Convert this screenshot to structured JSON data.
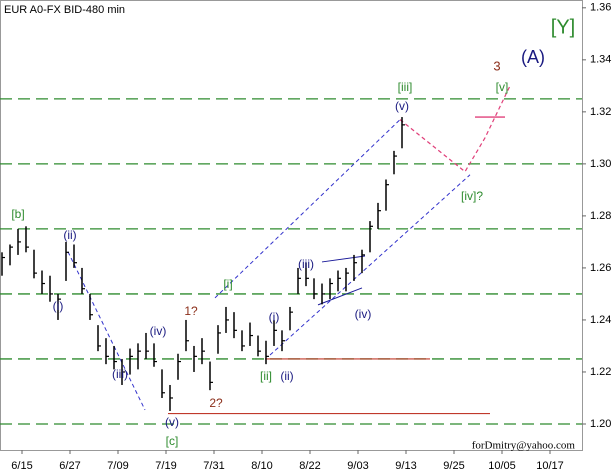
{
  "chart_data": {
    "type": "ohlc",
    "title": "EUR A0-FX BID-480 min",
    "footer": "forDmitry@yahoo.com",
    "color": "#000000",
    "x": [
      1,
      3,
      5,
      7,
      9,
      11,
      13,
      15,
      17,
      19,
      21,
      23,
      25,
      27,
      29,
      31,
      33,
      35,
      37,
      39,
      41,
      43,
      45,
      47,
      49,
      51,
      53,
      55,
      57,
      59,
      61,
      63,
      65,
      67,
      69,
      71,
      73,
      75,
      77,
      79,
      81,
      83,
      85,
      87,
      89,
      91,
      93,
      95,
      97,
      99,
      101
    ],
    "high": [
      1.266,
      1.269,
      1.275,
      1.276,
      1.267,
      1.259,
      1.257,
      1.25,
      1.27,
      1.269,
      1.26,
      1.25,
      1.238,
      1.233,
      1.23,
      1.225,
      1.229,
      1.231,
      1.235,
      1.231,
      1.221,
      1.215,
      1.227,
      1.24,
      1.23,
      1.233,
      1.224,
      1.238,
      1.245,
      1.243,
      1.236,
      1.239,
      1.234,
      1.232,
      1.24,
      1.236,
      1.245,
      1.26,
      1.262,
      1.256,
      1.254,
      1.256,
      1.259,
      1.26,
      1.265,
      1.267,
      1.278,
      1.285,
      1.294,
      1.305,
      1.318
    ],
    "low": [
      1.257,
      1.261,
      1.265,
      1.266,
      1.256,
      1.25,
      1.247,
      1.24,
      1.255,
      1.26,
      1.25,
      1.24,
      1.228,
      1.223,
      1.221,
      1.215,
      1.219,
      1.221,
      1.225,
      1.222,
      1.21,
      1.205,
      1.217,
      1.228,
      1.22,
      1.223,
      1.213,
      1.227,
      1.235,
      1.233,
      1.228,
      1.23,
      1.226,
      1.223,
      1.23,
      1.228,
      1.236,
      1.25,
      1.253,
      1.248,
      1.246,
      1.248,
      1.251,
      1.251,
      1.255,
      1.258,
      1.266,
      1.275,
      1.282,
      1.296,
      1.306
    ],
    "close": [
      1.264,
      1.268,
      1.27,
      1.268,
      1.258,
      1.254,
      1.25,
      1.248,
      1.266,
      1.262,
      1.252,
      1.242,
      1.23,
      1.226,
      1.224,
      1.22,
      1.226,
      1.228,
      1.228,
      1.224,
      1.212,
      1.21,
      1.224,
      1.232,
      1.226,
      1.228,
      1.216,
      1.235,
      1.24,
      1.236,
      1.23,
      1.234,
      1.228,
      1.226,
      1.236,
      1.232,
      1.243,
      1.256,
      1.256,
      1.25,
      1.25,
      1.254,
      1.256,
      1.258,
      1.262,
      1.265,
      1.276,
      1.282,
      1.292,
      1.303,
      1.315
    ],
    "xlim": [
      0.5,
      146
    ],
    "xticks": [
      {
        "value": 6,
        "label": "6/15"
      },
      {
        "value": 18,
        "label": "6/27"
      },
      {
        "value": 30,
        "label": "7/09"
      },
      {
        "value": 42,
        "label": "7/19"
      },
      {
        "value": 54,
        "label": "7/31"
      },
      {
        "value": 66,
        "label": "8/10"
      },
      {
        "value": 78,
        "label": "8/22"
      },
      {
        "value": 90,
        "label": "9/03"
      },
      {
        "value": 102,
        "label": "9/13"
      },
      {
        "value": 114,
        "label": "9/25"
      },
      {
        "value": 126,
        "label": "10/05"
      },
      {
        "value": 138,
        "label": "10/17"
      }
    ],
    "ylim": [
      1.19,
      1.363
    ],
    "yticks": [
      {
        "value": 1.2,
        "label": "1.20"
      },
      {
        "value": 1.22,
        "label": "1.22"
      },
      {
        "value": 1.24,
        "label": "1.24"
      },
      {
        "value": 1.26,
        "label": "1.26"
      },
      {
        "value": 1.28,
        "label": "1.28"
      },
      {
        "value": 1.3,
        "label": "1.30"
      },
      {
        "value": 1.32,
        "label": "1.32"
      },
      {
        "value": 1.34,
        "label": "1.34"
      },
      {
        "value": 1.36,
        "label": "1.36"
      }
    ],
    "levels": [
      1.325,
      1.3,
      1.275,
      1.25,
      1.225,
      1.2
    ],
    "level_color": "#2e8b2e",
    "support_lines": {
      "color": "#c0392b",
      "lines": [
        {
          "value": 1.204,
          "x": [
            42.5,
            123
          ]
        },
        {
          "value": 1.225,
          "x": [
            66.75,
            108
          ]
        }
      ]
    },
    "channels": {
      "color": "#3333cc",
      "lines": [
        {
          "x": [
            17.5,
            36.75
          ],
          "y": [
            1.2662,
            1.2054
          ]
        },
        {
          "x": [
            68,
            118
          ],
          "y": [
            1.2265,
            1.2958
          ]
        },
        {
          "x": [
            54.25,
            100.5
          ],
          "y": [
            1.2485,
            1.317
          ]
        }
      ]
    },
    "triangle": {
      "color": "#1a1a99",
      "lines": [
        {
          "x": [
            81,
            91.75
          ],
          "y": [
            1.2623,
            1.2646
          ]
        },
        {
          "x": [
            80,
            91
          ],
          "y": [
            1.2458,
            1.2523
          ]
        }
      ]
    },
    "projection": {
      "color": "#e0407a",
      "x": [
        100.5,
        116.75,
        121.75,
        128
      ],
      "y": [
        1.317,
        1.297,
        1.31,
        1.33
      ],
      "target": {
        "value": 1.318,
        "x": [
          119.25,
          126.75
        ]
      }
    },
    "annotations": [
      {
        "text": "[Y]",
        "color": "#2e8b2e"
      },
      {
        "text": "(A)",
        "color": "#1a1a80"
      },
      {
        "text": "3",
        "color": "#8b2e1a"
      },
      {
        "text": "[v]",
        "color": "#2e8b2e"
      },
      {
        "text": "[iii]",
        "color": "#2e8b2e"
      },
      {
        "text": "(v)",
        "color": "#1a1a80"
      },
      {
        "text": "[iv]?",
        "color": "#2e8b2e"
      },
      {
        "text": "[b]",
        "color": "#2e8b2e"
      },
      {
        "text": "(ii)",
        "color": "#1a1a80"
      },
      {
        "text": "(i)",
        "color": "#1a1a80"
      },
      {
        "text": "(iii)",
        "color": "#1a1a80"
      },
      {
        "text": "(iv)",
        "color": "#1a1a80"
      },
      {
        "text": "(v)",
        "color": "#1a1a80"
      },
      {
        "text": "[c]",
        "color": "#2e8b2e"
      },
      {
        "text": "1?",
        "color": "#8b2e1a"
      },
      {
        "text": "2?",
        "color": "#8b2e1a"
      },
      {
        "text": "[i]",
        "color": "#2e8b2e"
      },
      {
        "text": "[ii]",
        "color": "#2e8b2e"
      },
      {
        "text": "(ii)",
        "color": "#1a1a80"
      },
      {
        "text": "(i)",
        "color": "#1a1a80"
      },
      {
        "text": "(iii)",
        "color": "#1a1a80"
      },
      {
        "text": "(iv)",
        "color": "#1a1a80"
      }
    ]
  }
}
